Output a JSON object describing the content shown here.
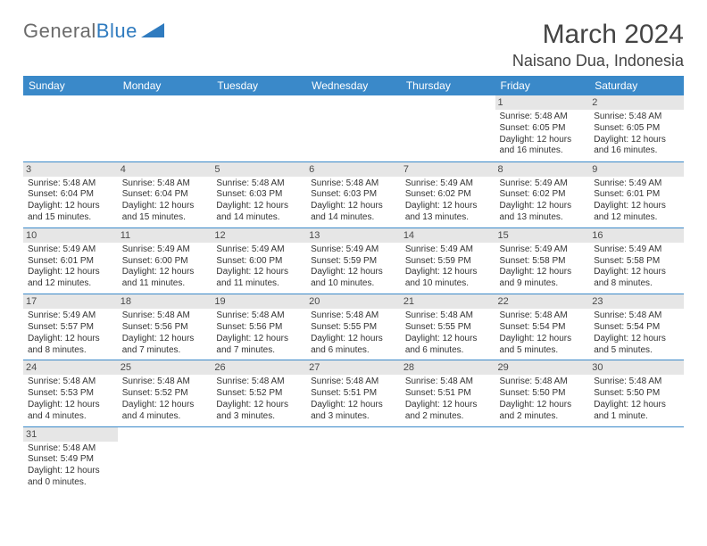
{
  "logo": {
    "part1": "General",
    "part2": "Blue"
  },
  "title": {
    "month": "March 2024",
    "location": "Naisano Dua, Indonesia"
  },
  "colors": {
    "header_bg": "#3a89c9",
    "header_text": "#ffffff",
    "daynum_bg": "#e6e6e6",
    "border": "#3a89c9",
    "text": "#333333",
    "logo_gray": "#6b6b6b",
    "logo_blue": "#2f7bbf"
  },
  "day_headers": [
    "Sunday",
    "Monday",
    "Tuesday",
    "Wednesday",
    "Thursday",
    "Friday",
    "Saturday"
  ],
  "weeks": [
    [
      null,
      null,
      null,
      null,
      null,
      {
        "n": "1",
        "sr": "Sunrise: 5:48 AM",
        "ss": "Sunset: 6:05 PM",
        "d1": "Daylight: 12 hours",
        "d2": "and 16 minutes."
      },
      {
        "n": "2",
        "sr": "Sunrise: 5:48 AM",
        "ss": "Sunset: 6:05 PM",
        "d1": "Daylight: 12 hours",
        "d2": "and 16 minutes."
      }
    ],
    [
      {
        "n": "3",
        "sr": "Sunrise: 5:48 AM",
        "ss": "Sunset: 6:04 PM",
        "d1": "Daylight: 12 hours",
        "d2": "and 15 minutes."
      },
      {
        "n": "4",
        "sr": "Sunrise: 5:48 AM",
        "ss": "Sunset: 6:04 PM",
        "d1": "Daylight: 12 hours",
        "d2": "and 15 minutes."
      },
      {
        "n": "5",
        "sr": "Sunrise: 5:48 AM",
        "ss": "Sunset: 6:03 PM",
        "d1": "Daylight: 12 hours",
        "d2": "and 14 minutes."
      },
      {
        "n": "6",
        "sr": "Sunrise: 5:48 AM",
        "ss": "Sunset: 6:03 PM",
        "d1": "Daylight: 12 hours",
        "d2": "and 14 minutes."
      },
      {
        "n": "7",
        "sr": "Sunrise: 5:49 AM",
        "ss": "Sunset: 6:02 PM",
        "d1": "Daylight: 12 hours",
        "d2": "and 13 minutes."
      },
      {
        "n": "8",
        "sr": "Sunrise: 5:49 AM",
        "ss": "Sunset: 6:02 PM",
        "d1": "Daylight: 12 hours",
        "d2": "and 13 minutes."
      },
      {
        "n": "9",
        "sr": "Sunrise: 5:49 AM",
        "ss": "Sunset: 6:01 PM",
        "d1": "Daylight: 12 hours",
        "d2": "and 12 minutes."
      }
    ],
    [
      {
        "n": "10",
        "sr": "Sunrise: 5:49 AM",
        "ss": "Sunset: 6:01 PM",
        "d1": "Daylight: 12 hours",
        "d2": "and 12 minutes."
      },
      {
        "n": "11",
        "sr": "Sunrise: 5:49 AM",
        "ss": "Sunset: 6:00 PM",
        "d1": "Daylight: 12 hours",
        "d2": "and 11 minutes."
      },
      {
        "n": "12",
        "sr": "Sunrise: 5:49 AM",
        "ss": "Sunset: 6:00 PM",
        "d1": "Daylight: 12 hours",
        "d2": "and 11 minutes."
      },
      {
        "n": "13",
        "sr": "Sunrise: 5:49 AM",
        "ss": "Sunset: 5:59 PM",
        "d1": "Daylight: 12 hours",
        "d2": "and 10 minutes."
      },
      {
        "n": "14",
        "sr": "Sunrise: 5:49 AM",
        "ss": "Sunset: 5:59 PM",
        "d1": "Daylight: 12 hours",
        "d2": "and 10 minutes."
      },
      {
        "n": "15",
        "sr": "Sunrise: 5:49 AM",
        "ss": "Sunset: 5:58 PM",
        "d1": "Daylight: 12 hours",
        "d2": "and 9 minutes."
      },
      {
        "n": "16",
        "sr": "Sunrise: 5:49 AM",
        "ss": "Sunset: 5:58 PM",
        "d1": "Daylight: 12 hours",
        "d2": "and 8 minutes."
      }
    ],
    [
      {
        "n": "17",
        "sr": "Sunrise: 5:49 AM",
        "ss": "Sunset: 5:57 PM",
        "d1": "Daylight: 12 hours",
        "d2": "and 8 minutes."
      },
      {
        "n": "18",
        "sr": "Sunrise: 5:48 AM",
        "ss": "Sunset: 5:56 PM",
        "d1": "Daylight: 12 hours",
        "d2": "and 7 minutes."
      },
      {
        "n": "19",
        "sr": "Sunrise: 5:48 AM",
        "ss": "Sunset: 5:56 PM",
        "d1": "Daylight: 12 hours",
        "d2": "and 7 minutes."
      },
      {
        "n": "20",
        "sr": "Sunrise: 5:48 AM",
        "ss": "Sunset: 5:55 PM",
        "d1": "Daylight: 12 hours",
        "d2": "and 6 minutes."
      },
      {
        "n": "21",
        "sr": "Sunrise: 5:48 AM",
        "ss": "Sunset: 5:55 PM",
        "d1": "Daylight: 12 hours",
        "d2": "and 6 minutes."
      },
      {
        "n": "22",
        "sr": "Sunrise: 5:48 AM",
        "ss": "Sunset: 5:54 PM",
        "d1": "Daylight: 12 hours",
        "d2": "and 5 minutes."
      },
      {
        "n": "23",
        "sr": "Sunrise: 5:48 AM",
        "ss": "Sunset: 5:54 PM",
        "d1": "Daylight: 12 hours",
        "d2": "and 5 minutes."
      }
    ],
    [
      {
        "n": "24",
        "sr": "Sunrise: 5:48 AM",
        "ss": "Sunset: 5:53 PM",
        "d1": "Daylight: 12 hours",
        "d2": "and 4 minutes."
      },
      {
        "n": "25",
        "sr": "Sunrise: 5:48 AM",
        "ss": "Sunset: 5:52 PM",
        "d1": "Daylight: 12 hours",
        "d2": "and 4 minutes."
      },
      {
        "n": "26",
        "sr": "Sunrise: 5:48 AM",
        "ss": "Sunset: 5:52 PM",
        "d1": "Daylight: 12 hours",
        "d2": "and 3 minutes."
      },
      {
        "n": "27",
        "sr": "Sunrise: 5:48 AM",
        "ss": "Sunset: 5:51 PM",
        "d1": "Daylight: 12 hours",
        "d2": "and 3 minutes."
      },
      {
        "n": "28",
        "sr": "Sunrise: 5:48 AM",
        "ss": "Sunset: 5:51 PM",
        "d1": "Daylight: 12 hours",
        "d2": "and 2 minutes."
      },
      {
        "n": "29",
        "sr": "Sunrise: 5:48 AM",
        "ss": "Sunset: 5:50 PM",
        "d1": "Daylight: 12 hours",
        "d2": "and 2 minutes."
      },
      {
        "n": "30",
        "sr": "Sunrise: 5:48 AM",
        "ss": "Sunset: 5:50 PM",
        "d1": "Daylight: 12 hours",
        "d2": "and 1 minute."
      }
    ],
    [
      {
        "n": "31",
        "sr": "Sunrise: 5:48 AM",
        "ss": "Sunset: 5:49 PM",
        "d1": "Daylight: 12 hours",
        "d2": "and 0 minutes."
      },
      null,
      null,
      null,
      null,
      null,
      null
    ]
  ]
}
